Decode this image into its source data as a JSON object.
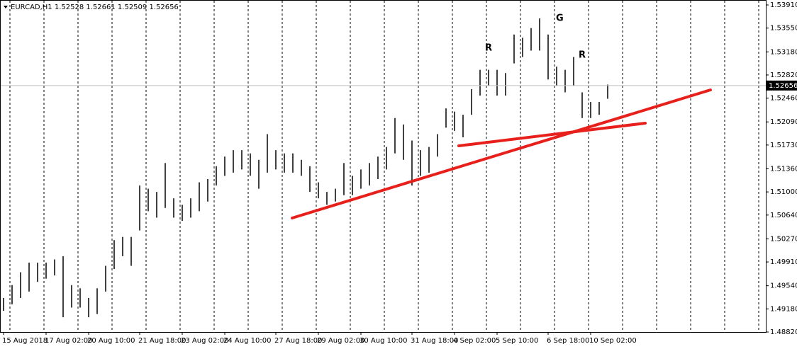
{
  "chart_data": {
    "type": "ohlc",
    "title": "EURCAD,H1  1.52528 1.52661 1.52509 1.52656",
    "color": "#000000",
    "grid": true,
    "ylim": [
      1.4882,
      1.5391
    ],
    "yticks": [
      {
        "value": 1.5391,
        "label": "1.53910"
      },
      {
        "value": 1.5355,
        "label": "1.53550"
      },
      {
        "value": 1.5318,
        "label": "1.53180"
      },
      {
        "value": 1.5282,
        "label": "1.52820"
      },
      {
        "value": 1.5246,
        "label": "1.52460"
      },
      {
        "value": 1.5209,
        "label": "1.52090"
      },
      {
        "value": 1.5173,
        "label": "1.51730"
      },
      {
        "value": 1.5136,
        "label": "1.51360"
      },
      {
        "value": 1.51,
        "label": "1.51000"
      },
      {
        "value": 1.5064,
        "label": "1.50640"
      },
      {
        "value": 1.5027,
        "label": "1.50270"
      },
      {
        "value": 1.4991,
        "label": "1.49910"
      },
      {
        "value": 1.4954,
        "label": "1.49540"
      },
      {
        "value": 1.4918,
        "label": "1.49180"
      },
      {
        "value": 1.4882,
        "label": "1.48820"
      }
    ],
    "last_price": {
      "value": 1.52656,
      "label": "1.52656"
    },
    "annotations": [
      "R",
      "G",
      "R"
    ],
    "categories": [
      "15 Aug 2018",
      null,
      null,
      null,
      null,
      "17 Aug 02:00",
      null,
      null,
      null,
      null,
      "20 Aug 10:00",
      null,
      null,
      null,
      null,
      null,
      "21 Aug 18:00",
      null,
      null,
      null,
      null,
      "23 Aug 02:00",
      null,
      null,
      null,
      null,
      "24 Aug 10:00",
      null,
      null,
      null,
      null,
      null,
      "27 Aug 18:00",
      null,
      null,
      null,
      null,
      "29 Aug 02:00",
      null,
      null,
      null,
      null,
      "30 Aug 10:00",
      null,
      null,
      null,
      null,
      null,
      "31 Aug 18:00",
      null,
      null,
      null,
      null,
      "4 Sep 02:00",
      null,
      null,
      null,
      null,
      "5 Sep 10:00",
      null,
      null,
      null,
      null,
      null,
      "6 Sep 18:00",
      null,
      null,
      null,
      null,
      "10 Sep 02:00",
      null,
      null
    ],
    "high": [
      1.4935,
      1.4955,
      1.4975,
      1.499,
      1.499,
      1.499,
      1.4995,
      1.5,
      1.4955,
      1.495,
      1.4935,
      1.495,
      1.4985,
      1.5025,
      1.503,
      1.503,
      1.511,
      1.5105,
      1.51,
      1.5145,
      1.509,
      1.508,
      1.509,
      1.5115,
      1.512,
      1.514,
      1.5155,
      1.5165,
      1.5165,
      1.516,
      1.515,
      1.519,
      1.5165,
      1.516,
      1.516,
      1.515,
      1.514,
      1.5115,
      1.51,
      1.5105,
      1.5145,
      1.5125,
      1.5135,
      1.5145,
      1.5155,
      1.517,
      1.5215,
      1.5205,
      1.518,
      1.5165,
      1.517,
      1.519,
      1.523,
      1.5225,
      1.522,
      1.526,
      1.529,
      1.529,
      1.529,
      1.5285,
      1.5345,
      1.534,
      1.5355,
      1.537,
      1.5345,
      1.5295,
      1.529,
      1.531,
      1.5255,
      1.524,
      1.524,
      1.5267
    ],
    "low": [
      1.4915,
      1.4925,
      1.4935,
      1.4945,
      1.496,
      1.4965,
      1.497,
      1.4905,
      1.492,
      1.492,
      1.4905,
      1.491,
      1.4945,
      1.498,
      1.5,
      1.4985,
      1.504,
      1.507,
      1.506,
      1.5075,
      1.506,
      1.5055,
      1.506,
      1.507,
      1.5085,
      1.511,
      1.5125,
      1.513,
      1.5135,
      1.5125,
      1.5105,
      1.513,
      1.5135,
      1.513,
      1.513,
      1.5125,
      1.51,
      1.509,
      1.508,
      1.5085,
      1.5095,
      1.5095,
      1.5105,
      1.511,
      1.512,
      1.5135,
      1.516,
      1.515,
      1.511,
      1.5125,
      1.513,
      1.5155,
      1.52,
      1.5195,
      1.5185,
      1.522,
      1.525,
      1.5265,
      1.525,
      1.525,
      1.53,
      1.531,
      1.532,
      1.532,
      1.5275,
      1.5265,
      1.5255,
      1.5265,
      1.5215,
      1.5215,
      1.522,
      1.5245
    ]
  }
}
